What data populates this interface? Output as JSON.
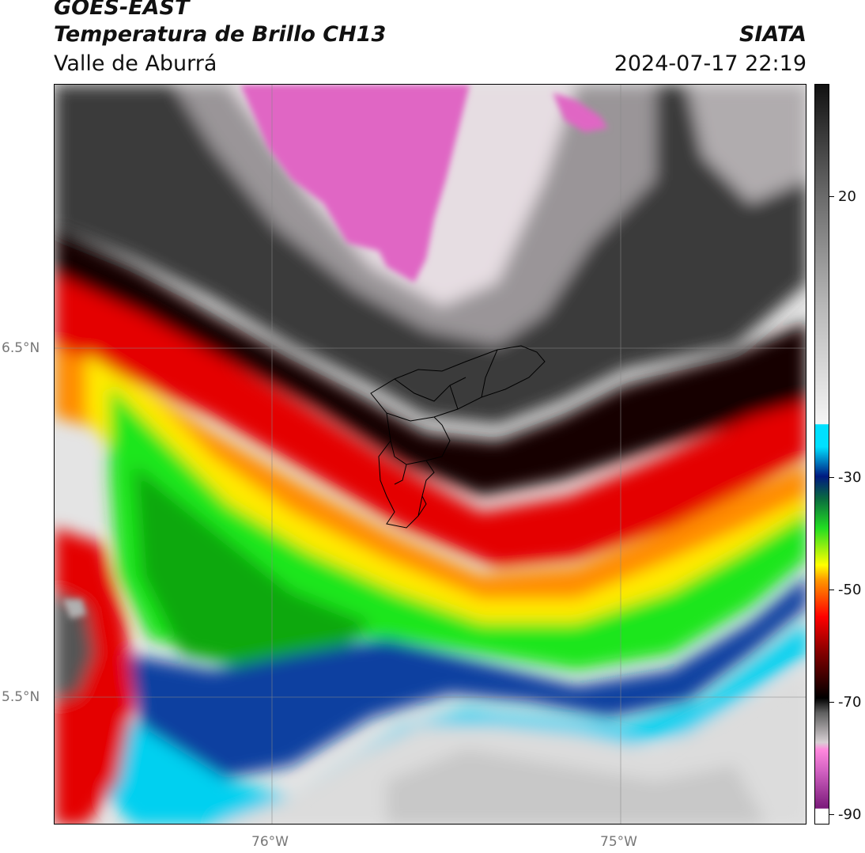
{
  "header": {
    "line1": "GOES-EAST",
    "line2": "Temperatura de Brillo CH13",
    "line3": "Valle de Aburrá",
    "right_line1": "SIATA",
    "right_line2": "2024-07-17 22:19"
  },
  "map": {
    "lat_labels": [
      "6.5°N",
      "5.5°N"
    ],
    "lon_labels": [
      "76°W",
      "75°W"
    ]
  },
  "colorbar": {
    "ticks": [
      "20",
      "-30",
      "-50",
      "-70",
      "-90"
    ],
    "colors": [
      "#f5f5f5",
      "#ff66cc",
      "#8a1a8a",
      "#2b2b2b",
      "#8b0000",
      "#ff0000",
      "#ff8c00",
      "#ffff00",
      "#00e000",
      "#004080",
      "#00e5ff",
      "#e8e8e8",
      "#808080",
      "#111111"
    ]
  }
}
